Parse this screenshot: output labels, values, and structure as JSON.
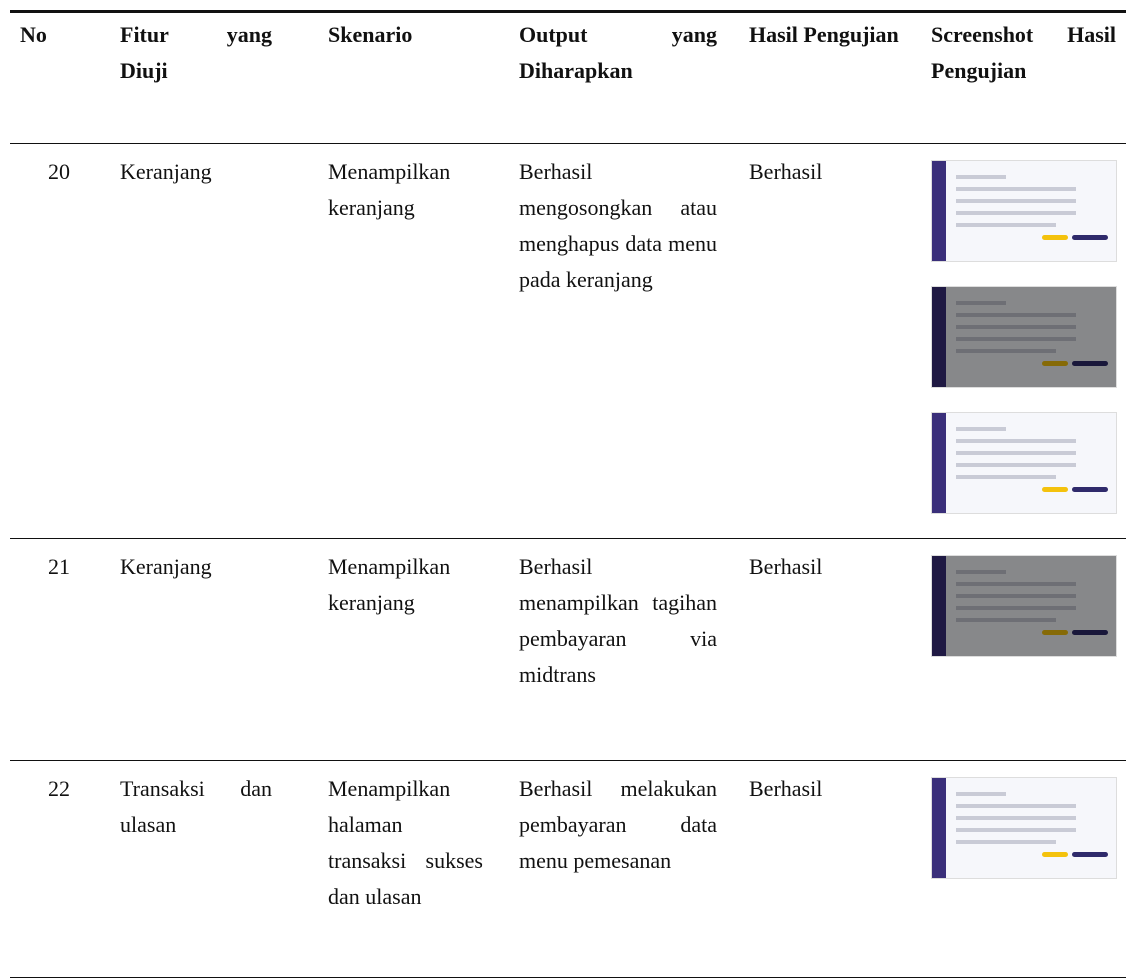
{
  "table": {
    "header": [
      "No",
      "Fitur yang Diuji",
      "Skenario",
      "Output yang Diharapkan",
      "Hasil Pengujian",
      "Screenshot Hasil Pengujian"
    ],
    "rows": [
      [
        20,
        "Keranjang",
        "Menampilkan keranjang",
        "Berhasil mengosongkan atau menghapus data menu pada keranjang",
        "Berhasil"
      ],
      [
        21,
        "Keranjang",
        "Menampilkan keranjang",
        "Berhasil menampilkan tagihan pembayaran via midtrans",
        "Berhasil"
      ],
      [
        22,
        "Transaksi dan ulasan",
        "Menampilkan halaman transaksi sukses dan ulasan",
        "Berhasil melakukan pembayaran data menu pemesanan",
        "Berhasil"
      ]
    ]
  }
}
